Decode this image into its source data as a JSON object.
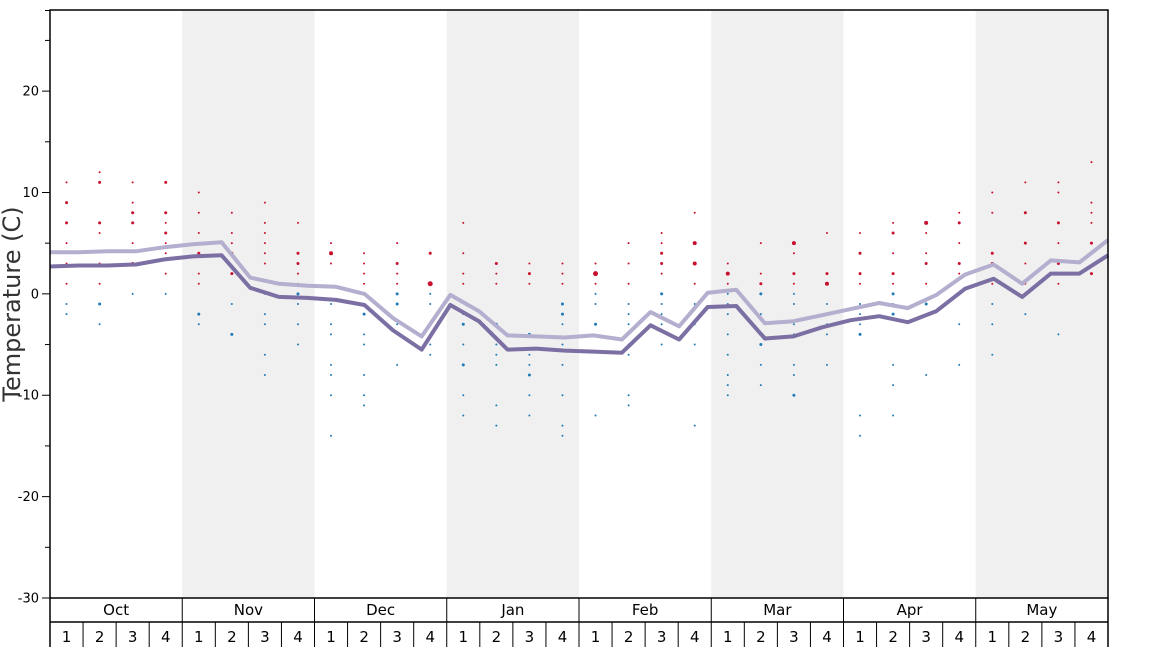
{
  "chart_data": {
    "type": "line",
    "ylabel": "Temperature (C)",
    "ylim": [
      -30,
      28
    ],
    "yticks": [
      20,
      10,
      0,
      -10,
      -20,
      -30
    ],
    "grid": false,
    "months": [
      "Oct",
      "Nov",
      "Dec",
      "Jan",
      "Feb",
      "Mar",
      "Apr",
      "May"
    ],
    "weeks": [
      "1",
      "2",
      "3",
      "4"
    ],
    "colors": {
      "band": "#f0f0f0",
      "line_light": "#b4aecf",
      "line_dark": "#7b6fa3",
      "warm_dots": "#c8102e",
      "cold_dots": "#1f7bb6"
    },
    "series": [
      {
        "values": [
          4.1,
          4.1,
          4.2,
          4.2,
          4.6,
          4.9,
          5.1,
          1.6,
          1.0,
          0.8,
          0.7,
          0.0,
          -2.4,
          -4.2,
          -0.1,
          -1.7,
          -4.1,
          -4.2,
          -4.3,
          -4.1,
          -4.5,
          -1.8,
          -3.2,
          0.1,
          0.4,
          -2.9,
          -2.7,
          -2.1,
          -1.5,
          -0.9,
          -1.4,
          -0.1,
          1.9,
          2.9,
          1.0,
          3.3,
          3.1,
          5.3
        ]
      },
      {
        "values": [
          2.7,
          2.8,
          2.8,
          2.9,
          3.4,
          3.7,
          3.8,
          0.6,
          -0.3,
          -0.4,
          -0.6,
          -1.1,
          -3.6,
          -5.5,
          -1.1,
          -2.7,
          -5.5,
          -5.4,
          -5.6,
          -5.7,
          -5.8,
          -3.1,
          -4.5,
          -1.3,
          -1.2,
          -4.4,
          -4.2,
          -3.3,
          -2.6,
          -2.2,
          -2.8,
          -1.7,
          0.5,
          1.5,
          -0.3,
          2.0,
          2.0,
          3.8
        ]
      }
    ],
    "warm_points": [
      [
        0,
        11,
        2
      ],
      [
        0,
        9,
        3
      ],
      [
        0,
        7,
        3
      ],
      [
        0,
        5,
        2
      ],
      [
        0,
        3,
        2
      ],
      [
        0,
        1,
        2
      ],
      [
        1,
        12,
        2
      ],
      [
        1,
        11,
        3
      ],
      [
        1,
        7,
        3
      ],
      [
        1,
        6,
        2
      ],
      [
        1,
        3,
        2
      ],
      [
        1,
        1,
        2
      ],
      [
        2,
        11,
        2
      ],
      [
        2,
        9,
        2
      ],
      [
        2,
        8,
        3
      ],
      [
        2,
        7,
        3
      ],
      [
        2,
        5,
        2
      ],
      [
        2,
        3,
        3
      ],
      [
        3,
        11,
        3
      ],
      [
        3,
        8,
        3
      ],
      [
        3,
        7,
        2
      ],
      [
        3,
        6,
        3
      ],
      [
        3,
        5,
        2
      ],
      [
        3,
        4,
        2
      ],
      [
        3,
        2,
        2
      ],
      [
        4,
        10,
        2
      ],
      [
        4,
        8,
        2
      ],
      [
        4,
        6,
        2
      ],
      [
        4,
        4,
        3
      ],
      [
        4,
        2,
        2
      ],
      [
        4,
        1,
        2
      ],
      [
        5,
        8,
        2
      ],
      [
        5,
        6,
        2
      ],
      [
        5,
        5,
        2
      ],
      [
        5,
        4,
        3
      ],
      [
        5,
        2,
        3
      ],
      [
        6,
        9,
        2
      ],
      [
        6,
        7,
        2
      ],
      [
        6,
        6,
        2
      ],
      [
        6,
        5,
        2
      ],
      [
        6,
        4,
        2
      ],
      [
        6,
        3,
        2
      ],
      [
        7,
        7,
        2
      ],
      [
        7,
        4,
        3
      ],
      [
        7,
        3,
        3
      ],
      [
        7,
        2,
        2
      ],
      [
        7,
        1,
        2
      ],
      [
        8,
        5,
        2
      ],
      [
        8,
        4,
        4
      ],
      [
        8,
        3,
        2
      ],
      [
        9,
        4,
        2
      ],
      [
        9,
        3,
        2
      ],
      [
        9,
        2,
        2
      ],
      [
        9,
        1,
        2
      ],
      [
        10,
        5,
        2
      ],
      [
        10,
        3,
        3
      ],
      [
        10,
        2,
        2
      ],
      [
        10,
        1,
        2
      ],
      [
        11,
        4,
        3
      ],
      [
        11,
        1,
        5
      ],
      [
        12,
        7,
        2
      ],
      [
        12,
        4,
        2
      ],
      [
        12,
        2,
        2
      ],
      [
        12,
        1,
        2
      ],
      [
        13,
        3,
        3
      ],
      [
        13,
        2,
        2
      ],
      [
        13,
        1,
        2
      ],
      [
        14,
        3,
        2
      ],
      [
        14,
        2,
        3
      ],
      [
        14,
        1,
        2
      ],
      [
        15,
        3,
        2
      ],
      [
        15,
        2,
        2
      ],
      [
        15,
        1,
        2
      ],
      [
        16,
        3,
        2
      ],
      [
        16,
        2,
        5
      ],
      [
        16,
        1,
        2
      ],
      [
        17,
        5,
        2
      ],
      [
        17,
        3,
        2
      ],
      [
        17,
        1,
        2
      ],
      [
        18,
        6,
        2
      ],
      [
        18,
        5,
        2
      ],
      [
        18,
        4,
        3
      ],
      [
        18,
        3,
        3
      ],
      [
        18,
        2,
        2
      ],
      [
        19,
        8,
        2
      ],
      [
        19,
        5,
        4
      ],
      [
        19,
        3,
        4
      ],
      [
        19,
        1,
        2
      ],
      [
        20,
        3,
        2
      ],
      [
        20,
        2,
        4
      ],
      [
        20,
        1,
        2
      ],
      [
        21,
        5,
        2
      ],
      [
        21,
        2,
        2
      ],
      [
        21,
        1,
        3
      ],
      [
        22,
        5,
        4
      ],
      [
        22,
        4,
        2
      ],
      [
        22,
        2,
        3
      ],
      [
        22,
        1,
        2
      ],
      [
        23,
        6,
        2
      ],
      [
        23,
        2,
        3
      ],
      [
        23,
        1,
        4
      ],
      [
        24,
        6,
        2
      ],
      [
        24,
        4,
        3
      ],
      [
        24,
        2,
        3
      ],
      [
        24,
        1,
        2
      ],
      [
        25,
        7,
        2
      ],
      [
        25,
        6,
        3
      ],
      [
        25,
        4,
        2
      ],
      [
        25,
        2,
        3
      ],
      [
        25,
        1,
        2
      ],
      [
        26,
        7,
        4
      ],
      [
        26,
        6,
        2
      ],
      [
        26,
        4,
        2
      ],
      [
        26,
        3,
        3
      ],
      [
        26,
        1,
        2
      ],
      [
        27,
        8,
        2
      ],
      [
        27,
        7,
        3
      ],
      [
        27,
        5,
        2
      ],
      [
        27,
        3,
        3
      ],
      [
        27,
        2,
        2
      ],
      [
        28,
        10,
        2
      ],
      [
        28,
        8,
        2
      ],
      [
        28,
        4,
        3
      ],
      [
        28,
        3,
        3
      ],
      [
        28,
        1,
        2
      ],
      [
        29,
        11,
        2
      ],
      [
        29,
        8,
        3
      ],
      [
        29,
        5,
        3
      ],
      [
        29,
        3,
        2
      ],
      [
        29,
        1,
        2
      ],
      [
        30,
        11,
        2
      ],
      [
        30,
        10,
        2
      ],
      [
        30,
        7,
        3
      ],
      [
        30,
        5,
        2
      ],
      [
        30,
        3,
        3
      ],
      [
        30,
        1,
        2
      ],
      [
        31,
        13,
        2
      ],
      [
        31,
        9,
        2
      ],
      [
        31,
        8,
        2
      ],
      [
        31,
        7,
        2
      ],
      [
        31,
        5,
        3
      ],
      [
        31,
        4,
        2
      ],
      [
        31,
        2,
        3
      ]
    ],
    "cold_points": [
      [
        0,
        -1,
        2
      ],
      [
        0,
        -2,
        2
      ],
      [
        1,
        -1,
        3
      ],
      [
        1,
        -3,
        2
      ],
      [
        2,
        0,
        2
      ],
      [
        3,
        0,
        2
      ],
      [
        4,
        -2,
        3
      ],
      [
        4,
        -3,
        2
      ],
      [
        5,
        -1,
        2
      ],
      [
        5,
        -4,
        3
      ],
      [
        6,
        0,
        2
      ],
      [
        6,
        -2,
        2
      ],
      [
        6,
        -3,
        2
      ],
      [
        6,
        -6,
        2
      ],
      [
        6,
        -8,
        2
      ],
      [
        7,
        0,
        3
      ],
      [
        7,
        -1,
        2
      ],
      [
        7,
        -3,
        2
      ],
      [
        7,
        -5,
        2
      ],
      [
        8,
        -1,
        2
      ],
      [
        8,
        -3,
        2
      ],
      [
        8,
        -4,
        2
      ],
      [
        8,
        -7,
        2
      ],
      [
        8,
        -8,
        2
      ],
      [
        8,
        -10,
        2
      ],
      [
        8,
        -14,
        2
      ],
      [
        9,
        -2,
        3
      ],
      [
        9,
        -4,
        2
      ],
      [
        9,
        -5,
        2
      ],
      [
        9,
        -8,
        2
      ],
      [
        9,
        -10,
        2
      ],
      [
        9,
        -11,
        2
      ],
      [
        10,
        0,
        3
      ],
      [
        10,
        -1,
        3
      ],
      [
        10,
        -3,
        2
      ],
      [
        10,
        -7,
        2
      ],
      [
        11,
        0,
        2
      ],
      [
        11,
        -1,
        2
      ],
      [
        11,
        -3,
        3
      ],
      [
        11,
        -5,
        2
      ],
      [
        11,
        -6,
        2
      ],
      [
        12,
        -2,
        2
      ],
      [
        12,
        -3,
        3
      ],
      [
        12,
        -5,
        2
      ],
      [
        12,
        -7,
        3
      ],
      [
        12,
        -10,
        2
      ],
      [
        12,
        -12,
        2
      ],
      [
        13,
        -3,
        3
      ],
      [
        13,
        -5,
        2
      ],
      [
        13,
        -6,
        2
      ],
      [
        13,
        -7,
        2
      ],
      [
        13,
        -11,
        2
      ],
      [
        13,
        -13,
        2
      ],
      [
        14,
        -4,
        3
      ],
      [
        14,
        -6,
        2
      ],
      [
        14,
        -7,
        2
      ],
      [
        14,
        -8,
        3
      ],
      [
        14,
        -10,
        2
      ],
      [
        14,
        -12,
        2
      ],
      [
        15,
        -1,
        3
      ],
      [
        15,
        -2,
        3
      ],
      [
        15,
        -3,
        2
      ],
      [
        15,
        -5,
        2
      ],
      [
        15,
        -7,
        2
      ],
      [
        15,
        -10,
        2
      ],
      [
        15,
        -13,
        2
      ],
      [
        15,
        -14,
        2
      ],
      [
        16,
        0,
        2
      ],
      [
        16,
        -1,
        2
      ],
      [
        16,
        -3,
        3
      ],
      [
        16,
        -12,
        2
      ],
      [
        17,
        -1,
        2
      ],
      [
        17,
        -2,
        2
      ],
      [
        17,
        -3,
        2
      ],
      [
        17,
        -5,
        2
      ],
      [
        17,
        -6,
        2
      ],
      [
        17,
        -10,
        2
      ],
      [
        17,
        -11,
        2
      ],
      [
        18,
        0,
        3
      ],
      [
        18,
        -1,
        2
      ],
      [
        18,
        -2,
        2
      ],
      [
        18,
        -3,
        2
      ],
      [
        18,
        -5,
        2
      ],
      [
        19,
        -1,
        2
      ],
      [
        19,
        -3,
        2
      ],
      [
        19,
        -5,
        2
      ],
      [
        19,
        -13,
        2
      ],
      [
        20,
        0,
        2
      ],
      [
        20,
        -1,
        2
      ],
      [
        20,
        -2,
        2
      ],
      [
        20,
        -4,
        2
      ],
      [
        20,
        -6,
        2
      ],
      [
        20,
        -8,
        2
      ],
      [
        20,
        -9,
        2
      ],
      [
        20,
        -10,
        2
      ],
      [
        21,
        0,
        3
      ],
      [
        21,
        -2,
        2
      ],
      [
        21,
        -4,
        3
      ],
      [
        21,
        -5,
        3
      ],
      [
        21,
        -7,
        2
      ],
      [
        21,
        -9,
        2
      ],
      [
        22,
        0,
        2
      ],
      [
        22,
        -1,
        2
      ],
      [
        22,
        -3,
        2
      ],
      [
        22,
        -4,
        2
      ],
      [
        22,
        -7,
        2
      ],
      [
        22,
        -8,
        2
      ],
      [
        22,
        -10,
        3
      ],
      [
        23,
        -1,
        2
      ],
      [
        23,
        -2,
        2
      ],
      [
        23,
        -3,
        2
      ],
      [
        23,
        -4,
        2
      ],
      [
        23,
        -7,
        2
      ],
      [
        24,
        -1,
        2
      ],
      [
        24,
        -2,
        2
      ],
      [
        24,
        -3,
        2
      ],
      [
        24,
        -4,
        3
      ],
      [
        24,
        -12,
        2
      ],
      [
        24,
        -14,
        2
      ],
      [
        25,
        0,
        3
      ],
      [
        25,
        -1,
        2
      ],
      [
        25,
        -2,
        3
      ],
      [
        25,
        -7,
        2
      ],
      [
        25,
        -9,
        2
      ],
      [
        25,
        -12,
        2
      ],
      [
        26,
        -1,
        3
      ],
      [
        26,
        -8,
        2
      ],
      [
        27,
        -3,
        2
      ],
      [
        27,
        -7,
        2
      ],
      [
        28,
        -1,
        2
      ],
      [
        28,
        -3,
        2
      ],
      [
        28,
        -6,
        2
      ],
      [
        29,
        -2,
        2
      ],
      [
        30,
        -4,
        2
      ]
    ]
  }
}
